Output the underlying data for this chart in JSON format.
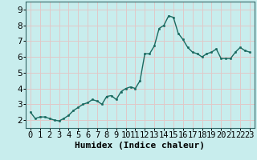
{
  "title": "",
  "xlabel": "Humidex (Indice chaleur)",
  "ylabel": "",
  "background_color": "#c8eded",
  "grid_color": "#e0c8c8",
  "line_color": "#1a6a60",
  "x": [
    0,
    0.5,
    1,
    1.5,
    2,
    2.5,
    3,
    3.5,
    4,
    4.5,
    5,
    5.5,
    6,
    6.5,
    7,
    7.5,
    8,
    8.5,
    9,
    9.5,
    10,
    10.5,
    11,
    11.5,
    12,
    12.5,
    13,
    13.5,
    14,
    14.5,
    15,
    15.5,
    16,
    16.5,
    17,
    17.5,
    18,
    18.5,
    19,
    19.5,
    20,
    20.5,
    21,
    21.5,
    22,
    22.5,
    23
  ],
  "y": [
    2.5,
    2.1,
    2.2,
    2.2,
    2.1,
    2.0,
    1.95,
    2.1,
    2.3,
    2.6,
    2.8,
    3.0,
    3.1,
    3.3,
    3.2,
    3.0,
    3.5,
    3.55,
    3.3,
    3.8,
    4.0,
    4.1,
    4.0,
    4.5,
    6.2,
    6.2,
    6.7,
    7.8,
    8.0,
    8.6,
    8.5,
    7.5,
    7.1,
    6.6,
    6.3,
    6.2,
    6.0,
    6.2,
    6.3,
    6.5,
    5.9,
    5.9,
    5.9,
    6.3,
    6.6,
    6.4,
    6.3
  ],
  "ylim": [
    1.5,
    9.5
  ],
  "xlim": [
    -0.5,
    23.5
  ],
  "yticks": [
    2,
    3,
    4,
    5,
    6,
    7,
    8,
    9
  ],
  "xticks": [
    0,
    1,
    2,
    3,
    4,
    5,
    6,
    7,
    8,
    9,
    10,
    11,
    12,
    13,
    14,
    15,
    16,
    17,
    18,
    19,
    20,
    21,
    22,
    23
  ],
  "marker": "o",
  "markersize": 1.8,
  "linewidth": 1.0,
  "tick_fontsize": 7.5,
  "xlabel_fontsize": 8.0
}
